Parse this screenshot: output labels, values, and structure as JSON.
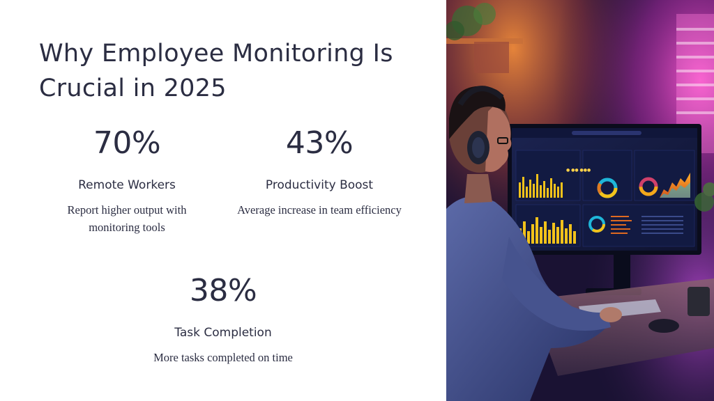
{
  "slide": {
    "title": "Why Employee Monitoring Is Crucial in 2025"
  },
  "stats": [
    {
      "value": "70%",
      "label": "Remote Workers",
      "description": "Report higher output with monitoring tools"
    },
    {
      "value": "43%",
      "label": "Productivity Boost",
      "description": "Average increase in team efficiency"
    },
    {
      "value": "38%",
      "label": "Task Completion",
      "description": "More tasks completed on time"
    }
  ],
  "photo": {
    "subject": "person with headphones viewing analytics dashboard on monitor",
    "colors": {
      "background_dark": "#1a1233",
      "glow_orange": "#e0702a",
      "glow_magenta": "#d23cc8",
      "screen_bg": "#141a36",
      "bar_yellow": "#f2c21a"
    }
  }
}
